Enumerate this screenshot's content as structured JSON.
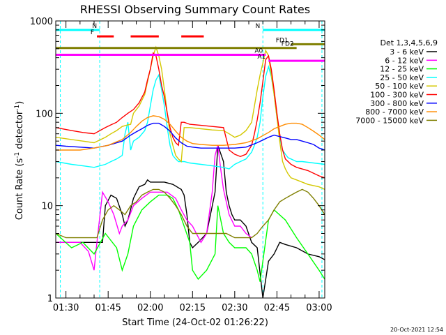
{
  "chart_data": {
    "type": "line",
    "title": "RHESSI Observing Summary Count Rates",
    "xlabel": "Start Time (24-Oct-02 01:26:22)",
    "ylabel_main": "Count Rate (s",
    "ylabel_sup1": "-1",
    "ylabel_mid": " detector",
    "ylabel_sup2": "-1",
    "ylabel_end": ")",
    "y_scale": "log",
    "ylim": [
      1,
      1000
    ],
    "xlim_min": [
      86.37,
      182
    ],
    "x_tick_minutes": [
      90,
      105,
      120,
      135,
      150,
      165,
      180
    ],
    "x_tick_labels": [
      "01:30",
      "01:45",
      "02:00",
      "02:15",
      "02:30",
      "02:45",
      "03:00"
    ],
    "y_major_ticks": [
      1,
      10,
      100,
      1000
    ],
    "y_tick_labels": [
      "1",
      "10",
      "100",
      "1000"
    ],
    "legend_title": "Det 1,3,4,5,6,9",
    "legend_placement": "right",
    "timestamp": "20-Oct-2021 12:54",
    "series": [
      {
        "name": "3 - 6 keV",
        "color": "#000000",
        "x": [
          86.4,
          95,
          102,
          103,
          104,
          106,
          108,
          110,
          111,
          112,
          114,
          116,
          118,
          119,
          120,
          122,
          125,
          128,
          131,
          132,
          133,
          134,
          135,
          137,
          140,
          143,
          144,
          146,
          147,
          148,
          149,
          150,
          152,
          154,
          156,
          158,
          160,
          162,
          164,
          166,
          168,
          172,
          176,
          180,
          182
        ],
        "y": [
          4,
          4,
          4,
          4,
          10,
          13,
          12,
          8,
          6,
          7,
          12,
          16,
          17,
          19,
          18,
          18,
          18,
          17,
          15,
          13,
          8,
          4,
          3.5,
          4,
          5,
          14,
          45,
          30,
          14,
          10,
          8,
          7,
          7,
          6,
          4,
          3.5,
          1,
          2.5,
          3,
          4,
          3.8,
          3.5,
          3,
          2.8,
          2.6
        ]
      },
      {
        "name": "6 - 12 keV",
        "color": "#ff00ff",
        "x": [
          86.4,
          95,
          98,
          100,
          101,
          103,
          105,
          107,
          109,
          110,
          112,
          114,
          117,
          120,
          123,
          126,
          129,
          131,
          133,
          135,
          138,
          140,
          142,
          143,
          144,
          145,
          146,
          148,
          150,
          152,
          154,
          156
        ],
        "y": [
          4,
          4,
          3.2,
          2,
          4,
          14,
          11,
          8,
          5,
          6,
          7,
          10,
          12,
          14,
          14,
          14,
          12,
          9,
          7,
          6,
          4,
          5,
          14,
          35,
          45,
          25,
          15,
          8,
          6,
          6,
          5,
          4.5
        ]
      },
      {
        "name": "12 - 25 keV",
        "color": "#00ff00",
        "x": [
          86.4,
          92,
          96,
          100,
          104,
          108,
          110,
          112,
          114,
          117,
          120,
          123,
          126,
          128,
          130,
          132,
          134,
          135,
          137,
          140,
          143,
          144,
          146,
          148,
          150,
          152,
          154,
          156,
          158,
          159,
          160,
          162,
          164,
          168,
          172,
          176,
          180,
          182
        ],
        "y": [
          5,
          3.5,
          4,
          3,
          5,
          3.5,
          2,
          3,
          6,
          9,
          11,
          13,
          13,
          12,
          9,
          6,
          4,
          2,
          1.6,
          2,
          3,
          10,
          5,
          4,
          3.5,
          3.5,
          3.5,
          3,
          2,
          1.5,
          2.5,
          7,
          9,
          7,
          4.5,
          3,
          2,
          1.6
        ]
      },
      {
        "name": "25 - 50 keV",
        "color": "#00ffff",
        "x": [
          86.4,
          92,
          96,
          100,
          104,
          106,
          108,
          110,
          111,
          112,
          113,
          114,
          116,
          118,
          119,
          120,
          121,
          122,
          123,
          124,
          125,
          126,
          127,
          128,
          129,
          130,
          131,
          132,
          134,
          138,
          142,
          146,
          148,
          150,
          152,
          154,
          156,
          157,
          158,
          159,
          160,
          161,
          162,
          163,
          164,
          165,
          166,
          167,
          168,
          169,
          170,
          171,
          172,
          174,
          178,
          182
        ],
        "y": [
          30,
          28,
          27,
          26,
          28,
          30,
          32,
          35,
          60,
          80,
          40,
          50,
          55,
          65,
          80,
          120,
          180,
          230,
          260,
          180,
          120,
          70,
          45,
          35,
          32,
          30,
          30,
          30,
          29,
          28,
          27,
          26,
          25,
          28,
          30,
          32,
          38,
          45,
          55,
          80,
          150,
          250,
          320,
          250,
          160,
          90,
          55,
          40,
          36,
          33,
          32,
          31,
          30,
          30,
          29,
          28
        ]
      },
      {
        "name": "50 - 100 keV",
        "color": "#d4c800",
        "x": [
          86.4,
          92,
          96,
          100,
          104,
          106,
          108,
          110,
          112,
          113,
          114,
          116,
          118,
          119,
          120,
          121,
          122,
          123,
          124,
          125,
          126,
          127,
          128,
          129,
          130,
          131,
          132,
          134,
          138,
          142,
          146,
          148,
          150,
          152,
          154,
          156,
          157,
          158,
          159,
          160,
          161,
          162,
          163,
          164,
          165,
          166,
          167,
          168,
          169,
          170,
          172,
          176,
          180,
          182
        ],
        "y": [
          55,
          52,
          50,
          48,
          55,
          60,
          65,
          72,
          75,
          76,
          100,
          120,
          160,
          220,
          300,
          420,
          520,
          420,
          300,
          180,
          100,
          60,
          45,
          35,
          32,
          30,
          70,
          70,
          68,
          66,
          65,
          60,
          55,
          58,
          65,
          80,
          120,
          180,
          260,
          350,
          480,
          420,
          260,
          160,
          90,
          50,
          30,
          25,
          22,
          20,
          19,
          17,
          16,
          15
        ]
      },
      {
        "name": "100 - 300 keV",
        "color": "#ff0000",
        "x": [
          86.4,
          92,
          96,
          100,
          104,
          106,
          108,
          110,
          112,
          114,
          116,
          118,
          119,
          120,
          121,
          122,
          123,
          124,
          125,
          126,
          127,
          128,
          129,
          130,
          131,
          132,
          134,
          138,
          142,
          146,
          148,
          150,
          152,
          154,
          156,
          157,
          158,
          159,
          160,
          161,
          162,
          163,
          164,
          165,
          166,
          167,
          168,
          170,
          172,
          176,
          180,
          182
        ],
        "y": [
          70,
          65,
          62,
          60,
          70,
          75,
          80,
          90,
          100,
          110,
          130,
          170,
          230,
          300,
          450,
          420,
          300,
          200,
          150,
          100,
          70,
          55,
          48,
          45,
          80,
          80,
          76,
          74,
          72,
          70,
          40,
          36,
          34,
          36,
          45,
          60,
          85,
          130,
          220,
          380,
          420,
          300,
          180,
          100,
          60,
          40,
          32,
          28,
          26,
          24,
          21,
          20
        ]
      },
      {
        "name": "300 - 800 keV",
        "color": "#0000ff",
        "x": [
          86.4,
          90,
          95,
          100,
          105,
          110,
          113,
          115,
          117,
          119,
          121,
          123,
          125,
          127,
          129,
          131,
          133,
          135,
          138,
          142,
          146,
          150,
          154,
          158,
          162,
          164,
          166,
          168,
          170,
          172,
          174,
          176,
          178,
          180,
          182
        ],
        "y": [
          45,
          44,
          43,
          42,
          45,
          50,
          58,
          63,
          68,
          74,
          78,
          78,
          72,
          64,
          54,
          48,
          44,
          43,
          42,
          42,
          42,
          42,
          43,
          48,
          55,
          58,
          56,
          54,
          52,
          52,
          50,
          48,
          46,
          42,
          40
        ]
      },
      {
        "name": "800 - 7000 keV",
        "color": "#ff8c00",
        "x": [
          86.4,
          90,
          95,
          100,
          105,
          110,
          113,
          115,
          117,
          119,
          121,
          123,
          125,
          127,
          129,
          131,
          133,
          135,
          138,
          142,
          146,
          150,
          154,
          158,
          162,
          164,
          166,
          168,
          170,
          172,
          174,
          176,
          178,
          180,
          182
        ],
        "y": [
          40,
          40,
          40,
          42,
          45,
          52,
          62,
          72,
          82,
          90,
          94,
          92,
          86,
          76,
          64,
          55,
          50,
          47,
          46,
          45,
          45,
          46,
          48,
          53,
          62,
          68,
          72,
          76,
          78,
          78,
          76,
          70,
          64,
          58,
          52
        ]
      },
      {
        "name": "7000 - 15000 keV",
        "color": "#7f7f00",
        "x": [
          86.4,
          90,
          95,
          100,
          101,
          103,
          105,
          107,
          109,
          111,
          113,
          115,
          117,
          119,
          121,
          123,
          125,
          127,
          129,
          131,
          133,
          135,
          137,
          140,
          143,
          145,
          147,
          150,
          153,
          156,
          158,
          160,
          162,
          164,
          166,
          168,
          170,
          172,
          174,
          176,
          178,
          180,
          182
        ],
        "y": [
          5,
          4.5,
          4.5,
          4.5,
          4.5,
          7,
          9,
          10,
          9,
          8,
          10,
          11,
          13,
          14,
          15,
          15,
          14,
          12,
          10,
          8,
          6,
          5,
          5,
          5,
          5,
          5,
          5,
          4.5,
          4.5,
          4.5,
          5,
          6,
          7,
          9,
          11,
          12,
          13,
          14,
          15,
          14,
          12,
          10,
          8
        ]
      }
    ],
    "flags": [
      {
        "name": "N",
        "color": "#00ffff",
        "level": 800,
        "spans": [
          [
            86.4,
            102
          ]
        ]
      },
      {
        "name": "N",
        "color": "#00ffff",
        "level": 800,
        "spans": [
          [
            160,
            182
          ]
        ]
      },
      {
        "name": "F",
        "color": "#ff0000",
        "level": 680,
        "spans": [
          [
            101,
            107
          ],
          [
            113,
            123
          ],
          [
            131,
            139
          ]
        ]
      },
      {
        "name": "FD1",
        "color": "#7f7f00",
        "level": 560,
        "spans": [
          [
            170,
            182
          ]
        ]
      },
      {
        "name": "FD2",
        "color": "#7f7f00",
        "level": 510,
        "spans": [
          [
            86.4,
            172
          ]
        ]
      },
      {
        "name": "A0",
        "color": "#ff00ff",
        "level": 430,
        "spans": [
          [
            86.4,
            161
          ]
        ]
      },
      {
        "name": "A1",
        "color": "#ff00ff",
        "level": 370,
        "spans": [
          [
            162,
            182
          ]
        ]
      }
    ],
    "vlines": [
      {
        "color": "#00ffff",
        "x": [
          88,
          102,
          160,
          181
        ]
      }
    ]
  }
}
